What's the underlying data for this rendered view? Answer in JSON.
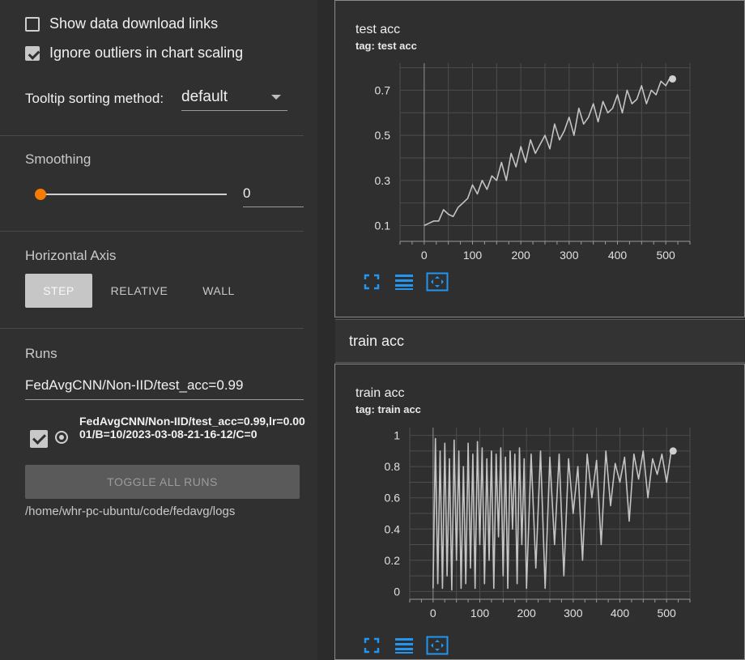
{
  "sidebar": {
    "show_download_links": {
      "label": "Show data download links",
      "checked": false
    },
    "ignore_outliers": {
      "label": "Ignore outliers in chart scaling",
      "checked": true
    },
    "tooltip": {
      "label": "Tooltip sorting method:",
      "value": "default"
    },
    "smoothing": {
      "title": "Smoothing",
      "value": "0"
    },
    "horizontal_axis": {
      "title": "Horizontal Axis",
      "options": [
        "STEP",
        "RELATIVE",
        "WALL"
      ],
      "selected": "STEP"
    },
    "runs": {
      "title": "Runs",
      "filter": "FedAvgCNN/Non-IID/test_acc=0.99",
      "run_name": "FedAvgCNN/Non-IID/test_acc=0.99,lr=0.0001/B=10/2023-03-08-21-16-12/C=0",
      "toggle_label": "TOGGLE ALL RUNS",
      "log_dir": "/home/whr-pc-ubuntu/code/fedavg/logs"
    }
  },
  "main": {
    "group_title": "train acc",
    "accent_color": "#2196f3",
    "line_color": "#c4c4c4",
    "orange_color": "#f57c00"
  },
  "chart_data": [
    {
      "type": "line",
      "title": "test acc",
      "tag": "tag: test acc",
      "xlim": [
        -50,
        550
      ],
      "ylim": [
        0.03,
        0.82
      ],
      "xticks": [
        0,
        100,
        200,
        300,
        400,
        500
      ],
      "yticks": [
        0.1,
        0.3,
        0.5,
        0.7
      ],
      "series": [
        {
          "x": [
            0,
            10,
            20,
            30,
            40,
            50,
            60,
            70,
            80,
            90,
            100,
            110,
            120,
            130,
            140,
            150,
            160,
            170,
            180,
            190,
            200,
            210,
            220,
            230,
            240,
            250,
            260,
            270,
            280,
            290,
            300,
            310,
            320,
            330,
            340,
            350,
            360,
            370,
            380,
            390,
            400,
            410,
            420,
            430,
            440,
            450,
            460,
            470,
            480,
            490,
            500,
            510,
            514
          ],
          "values": [
            0.1,
            0.11,
            0.12,
            0.12,
            0.17,
            0.15,
            0.14,
            0.18,
            0.2,
            0.22,
            0.28,
            0.24,
            0.3,
            0.26,
            0.32,
            0.3,
            0.38,
            0.3,
            0.42,
            0.36,
            0.45,
            0.38,
            0.48,
            0.42,
            0.46,
            0.5,
            0.44,
            0.55,
            0.48,
            0.52,
            0.58,
            0.5,
            0.62,
            0.55,
            0.58,
            0.64,
            0.56,
            0.65,
            0.6,
            0.62,
            0.68,
            0.6,
            0.7,
            0.64,
            0.66,
            0.72,
            0.64,
            0.7,
            0.68,
            0.74,
            0.72,
            0.76,
            0.75
          ]
        }
      ]
    },
    {
      "type": "line",
      "title": "train acc",
      "tag": "tag: train acc",
      "xlim": [
        -50,
        550
      ],
      "ylim": [
        -0.05,
        1.05
      ],
      "xticks": [
        0,
        100,
        200,
        300,
        400,
        500
      ],
      "yticks": [
        0,
        0.2,
        0.4,
        0.6,
        0.8,
        1
      ],
      "series": [
        {
          "x": [
            0,
            5,
            10,
            15,
            20,
            25,
            30,
            35,
            40,
            45,
            50,
            55,
            60,
            65,
            70,
            75,
            80,
            85,
            90,
            95,
            100,
            105,
            110,
            115,
            120,
            125,
            130,
            135,
            140,
            145,
            150,
            155,
            160,
            165,
            170,
            175,
            180,
            185,
            190,
            195,
            200,
            210,
            220,
            230,
            240,
            250,
            260,
            270,
            280,
            290,
            300,
            310,
            320,
            330,
            340,
            350,
            360,
            370,
            380,
            390,
            400,
            410,
            420,
            430,
            440,
            450,
            460,
            470,
            480,
            490,
            500,
            510,
            514
          ],
          "values": [
            0.02,
            0.98,
            0.05,
            0.9,
            0.02,
            0.95,
            0.1,
            0.85,
            0.01,
            0.97,
            0.2,
            0.9,
            0.02,
            0.8,
            0.05,
            0.95,
            0.15,
            0.88,
            0.02,
            0.96,
            0.3,
            0.92,
            0.05,
            0.85,
            0.2,
            0.9,
            0.02,
            0.88,
            0.35,
            0.92,
            0.1,
            0.86,
            0.02,
            0.9,
            0.4,
            0.88,
            0.05,
            0.92,
            0.3,
            0.85,
            0.02,
            0.88,
            0.15,
            0.9,
            0.02,
            0.86,
            0.3,
            0.88,
            0.1,
            0.85,
            0.5,
            0.8,
            0.2,
            0.88,
            0.6,
            0.84,
            0.3,
            0.9,
            0.55,
            0.82,
            0.7,
            0.86,
            0.45,
            0.88,
            0.72,
            0.9,
            0.6,
            0.85,
            0.75,
            0.88,
            0.7,
            0.9,
            0.9
          ]
        }
      ]
    }
  ]
}
